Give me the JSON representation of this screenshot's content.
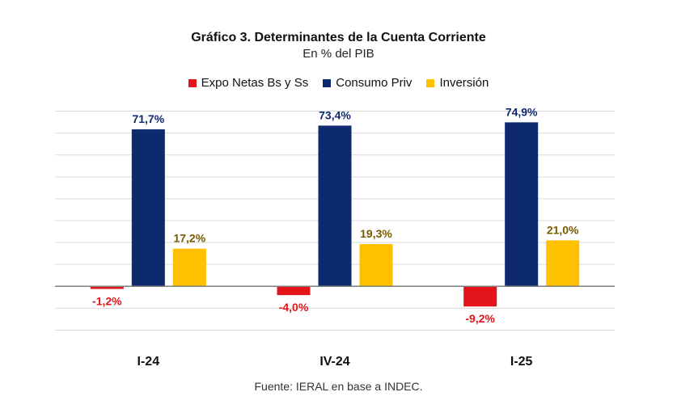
{
  "colors": {
    "expo": "#E3151A",
    "consumo": "#0E2A6E",
    "inversion": "#FFC000",
    "label_inversion": "#7A5A00",
    "grid": "#D9D9D9",
    "axis": "#7F7F7F"
  },
  "chart_data": {
    "type": "bar",
    "title": "Gráfico 3. Determinantes de la Cuenta Corriente",
    "subtitle": "En % del PIB",
    "categories": [
      "I-24",
      "IV-24",
      "I-25"
    ],
    "series": [
      {
        "name": "Expo Netas Bs y Ss",
        "values": [
          -1.2,
          -4.0,
          -9.2
        ],
        "labels": [
          "-1,2%",
          "-4,0%",
          "-9,2%"
        ],
        "color": "#E3151A"
      },
      {
        "name": "Consumo Priv",
        "values": [
          71.7,
          73.4,
          74.9
        ],
        "labels": [
          "71,7%",
          "73,4%",
          "74,9%"
        ],
        "color": "#0E2A6E"
      },
      {
        "name": "Inversión",
        "values": [
          17.2,
          19.3,
          21.0
        ],
        "labels": [
          "17,2%",
          "19,3%",
          "21,0%"
        ],
        "color": "#FFC000"
      }
    ],
    "ylim": [
      -25,
      85
    ],
    "grid": true,
    "legend": "top",
    "xlabel": "",
    "ylabel": ""
  },
  "source_note": "Fuente: IERAL en base a INDEC."
}
